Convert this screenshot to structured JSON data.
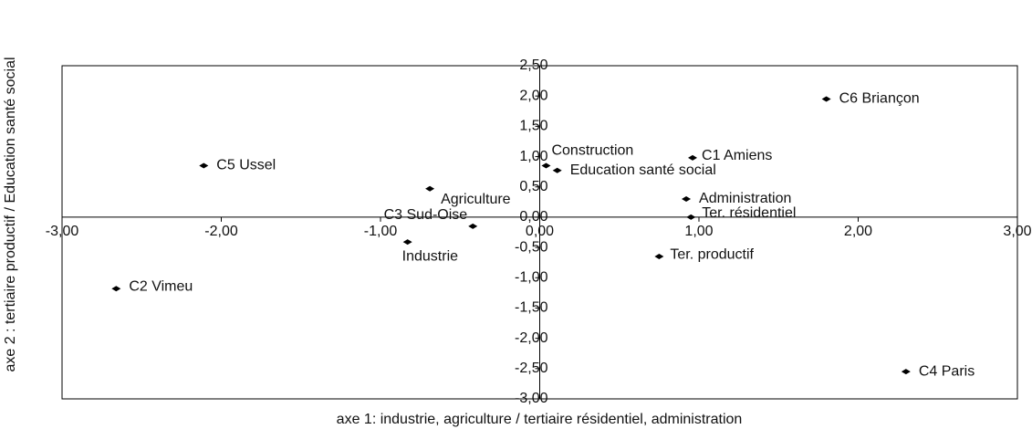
{
  "chart_data": {
    "type": "scatter",
    "x_label": "axe 1: industrie, agriculture / tertiaire résidentiel, administration",
    "y_label": "axe 2 : tertiaire productif / Education santé social",
    "labels": [
      "C6 Briançon",
      "C5 Ussel",
      "Construction",
      "Education santé social",
      "C1 Amiens",
      "Agriculture",
      "Administration",
      "Ter. résidentiel",
      "C3 Sud-Oise",
      "Industrie",
      "Ter. productif",
      "C2 Vimeu",
      "C4 Paris"
    ],
    "x": [
      1.8,
      -2.11,
      0.04,
      0.11,
      0.96,
      -0.69,
      0.92,
      0.95,
      -0.42,
      -0.83,
      0.75,
      -2.66,
      2.3
    ],
    "y": [
      1.95,
      0.85,
      0.85,
      0.77,
      0.98,
      0.47,
      0.3,
      0.0,
      -0.15,
      -0.41,
      -0.65,
      -1.18,
      -2.55
    ],
    "color": "#000000",
    "xlim": [
      -3,
      3
    ],
    "ylim": [
      -3,
      2.5
    ],
    "xticks": [
      {
        "value": -3,
        "label": "-3,00"
      },
      {
        "value": -2,
        "label": "-2,00"
      },
      {
        "value": -1,
        "label": "-1,00"
      },
      {
        "value": 0,
        "label": "0,00"
      },
      {
        "value": 1,
        "label": "1,00"
      },
      {
        "value": 2,
        "label": "2,00"
      },
      {
        "value": 3,
        "label": "3,00"
      }
    ],
    "yticks": [
      {
        "value": -3,
        "label": "-3,00"
      },
      {
        "value": -2.5,
        "label": "-2,50"
      },
      {
        "value": -2,
        "label": "-2,00"
      },
      {
        "value": -1.5,
        "label": "-1,50"
      },
      {
        "value": -1,
        "label": "-1,00"
      },
      {
        "value": -0.5,
        "label": "-0,50"
      },
      {
        "value": 0,
        "label": "0,00"
      },
      {
        "value": 0.5,
        "label": "0,50"
      },
      {
        "value": 1,
        "label": "1,00"
      },
      {
        "value": 1.5,
        "label": "1,50"
      },
      {
        "value": 2,
        "label": "2,00"
      },
      {
        "value": 2.5,
        "label": "2,50"
      }
    ]
  }
}
